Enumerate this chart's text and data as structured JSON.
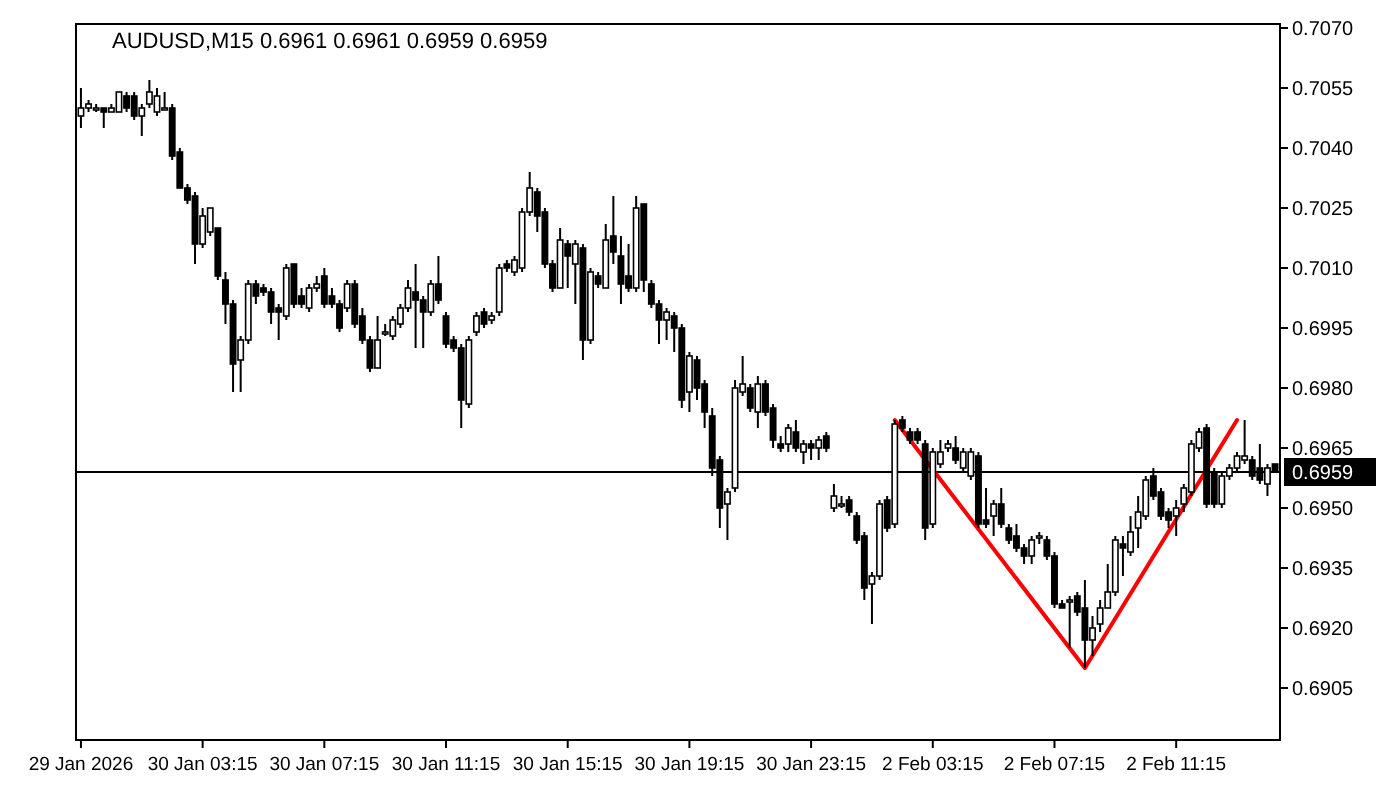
{
  "chart_data": {
    "type": "candlestick",
    "title": "AUDUSD,M15  0.6961 0.6961 0.6959 0.6959",
    "categories": [
      "29 Jan 2026",
      null,
      null,
      null,
      null,
      null,
      null,
      null,
      null,
      null,
      null,
      null,
      null,
      null,
      null,
      null,
      "30 Jan 03:15",
      null,
      null,
      null,
      null,
      null,
      null,
      null,
      null,
      null,
      null,
      null,
      null,
      null,
      null,
      null,
      "30 Jan 07:15",
      null,
      null,
      null,
      null,
      null,
      null,
      null,
      null,
      null,
      null,
      null,
      null,
      null,
      null,
      null,
      "30 Jan 11:15",
      null,
      null,
      null,
      null,
      null,
      null,
      null,
      null,
      null,
      null,
      null,
      null,
      null,
      null,
      null,
      "30 Jan 15:15",
      null,
      null,
      null,
      null,
      null,
      null,
      null,
      null,
      null,
      null,
      null,
      null,
      null,
      null,
      null,
      "30 Jan 19:15",
      null,
      null,
      null,
      null,
      null,
      null,
      null,
      null,
      null,
      null,
      null,
      null,
      null,
      null,
      null,
      "30 Jan 23:15",
      null,
      null,
      null,
      null,
      null,
      null,
      null,
      null,
      null,
      null,
      null,
      null,
      null,
      null,
      null,
      "2 Feb 03:15",
      null,
      null,
      null,
      null,
      null,
      null,
      null,
      null,
      null,
      null,
      null,
      null,
      null,
      null,
      null,
      "2 Feb 07:15",
      null,
      null,
      null,
      null,
      null,
      null,
      null,
      null,
      null,
      null,
      null,
      null,
      null,
      null,
      null,
      "2 Feb 11:15",
      null,
      null,
      null,
      null,
      null,
      null,
      null,
      null,
      null,
      null,
      null,
      null,
      null
    ],
    "ohlc": [
      [
        0.7048,
        0.7055,
        0.7045,
        0.705
      ],
      [
        0.705,
        0.7052,
        0.7049,
        0.7051
      ],
      [
        0.705,
        0.7051,
        0.7049,
        0.705
      ],
      [
        0.705,
        0.705,
        0.7045,
        0.7049
      ],
      [
        0.7049,
        0.7051,
        0.7049,
        0.705
      ],
      [
        0.7049,
        0.7054,
        0.7049,
        0.7054
      ],
      [
        0.7053,
        0.7054,
        0.7049,
        0.705
      ],
      [
        0.7053,
        0.7054,
        0.7047,
        0.7048
      ],
      [
        0.7048,
        0.7051,
        0.7043,
        0.705
      ],
      [
        0.7051,
        0.7057,
        0.705,
        0.7054
      ],
      [
        0.7049,
        0.7055,
        0.7048,
        0.7053
      ],
      [
        0.705,
        0.7054,
        0.705,
        0.705
      ],
      [
        0.705,
        0.7051,
        0.7037,
        0.7038
      ],
      [
        0.7039,
        0.704,
        0.703,
        0.703
      ],
      [
        0.703,
        0.7031,
        0.7026,
        0.7027
      ],
      [
        0.7028,
        0.7029,
        0.7011,
        0.7016
      ],
      [
        0.7016,
        0.7025,
        0.7015,
        0.7023
      ],
      [
        0.7019,
        0.7025,
        0.7018,
        0.7025
      ],
      [
        0.702,
        0.702,
        0.7007,
        0.7008
      ],
      [
        0.7007,
        0.7009,
        0.6996,
        0.7001
      ],
      [
        0.7001,
        0.7002,
        0.6979,
        0.6986
      ],
      [
        0.6987,
        0.6993,
        0.6979,
        0.6992
      ],
      [
        0.6992,
        0.7007,
        0.6991,
        0.7006
      ],
      [
        0.7006,
        0.7007,
        0.7001,
        0.7003
      ],
      [
        0.7005,
        0.7006,
        0.7003,
        0.7004
      ],
      [
        0.7004,
        0.7005,
        0.6996,
        0.6999
      ],
      [
        0.7,
        0.7001,
        0.6992,
        0.6999
      ],
      [
        0.6998,
        0.7011,
        0.6997,
        0.701
      ],
      [
        0.7011,
        0.7011,
        0.7,
        0.7001
      ],
      [
        0.7003,
        0.7005,
        0.7,
        0.7001
      ],
      [
        0.7,
        0.7006,
        0.6999,
        0.7005
      ],
      [
        0.7005,
        0.7008,
        0.7004,
        0.7006
      ],
      [
        0.7008,
        0.701,
        0.7,
        0.7001
      ],
      [
        0.7003,
        0.7005,
        0.7,
        0.7001
      ],
      [
        0.7001,
        0.7002,
        0.6994,
        0.6995
      ],
      [
        0.7,
        0.7007,
        0.6999,
        0.7006
      ],
      [
        0.7006,
        0.7007,
        0.6995,
        0.6996
      ],
      [
        0.6998,
        0.7,
        0.6991,
        0.6992
      ],
      [
        0.6992,
        0.6993,
        0.6984,
        0.6985
      ],
      [
        0.6985,
        0.6998,
        0.6985,
        0.6992
      ],
      [
        0.6994,
        0.6996,
        0.6993,
        0.6994
      ],
      [
        0.6993,
        0.6998,
        0.6992,
        0.6997
      ],
      [
        0.6996,
        0.7001,
        0.6995,
        0.7
      ],
      [
        0.7,
        0.7007,
        0.6999,
        0.7005
      ],
      [
        0.7004,
        0.7011,
        0.699,
        0.7002
      ],
      [
        0.7002,
        0.7003,
        0.699,
        0.6999
      ],
      [
        0.6999,
        0.7007,
        0.6998,
        0.7006
      ],
      [
        0.7006,
        0.7013,
        0.7001,
        0.7002
      ],
      [
        0.6998,
        0.6999,
        0.699,
        0.6991
      ],
      [
        0.6992,
        0.6993,
        0.6989,
        0.699
      ],
      [
        0.699,
        0.6991,
        0.697,
        0.6977
      ],
      [
        0.6976,
        0.6993,
        0.6975,
        0.6992
      ],
      [
        0.6994,
        0.6999,
        0.6993,
        0.6998
      ],
      [
        0.6999,
        0.7,
        0.6995,
        0.6996
      ],
      [
        0.6997,
        0.6999,
        0.6996,
        0.6998
      ],
      [
        0.6999,
        0.7011,
        0.6998,
        0.701
      ],
      [
        0.7011,
        0.7012,
        0.7009,
        0.701
      ],
      [
        0.7009,
        0.7013,
        0.7008,
        0.7012
      ],
      [
        0.701,
        0.7025,
        0.7009,
        0.7024
      ],
      [
        0.7024,
        0.7034,
        0.7023,
        0.703
      ],
      [
        0.7029,
        0.703,
        0.7019,
        0.7023
      ],
      [
        0.7024,
        0.7025,
        0.701,
        0.7011
      ],
      [
        0.7011,
        0.7012,
        0.7004,
        0.7005
      ],
      [
        0.7005,
        0.702,
        0.7005,
        0.7017
      ],
      [
        0.7016,
        0.7017,
        0.7005,
        0.7013
      ],
      [
        0.7011,
        0.7017,
        0.7001,
        0.7016
      ],
      [
        0.7015,
        0.7016,
        0.6987,
        0.6992
      ],
      [
        0.6992,
        0.701,
        0.6991,
        0.7009
      ],
      [
        0.7008,
        0.7009,
        0.7005,
        0.7006
      ],
      [
        0.7005,
        0.7021,
        0.7005,
        0.7017
      ],
      [
        0.7018,
        0.7028,
        0.7011,
        0.7014
      ],
      [
        0.7013,
        0.7018,
        0.7001,
        0.7006
      ],
      [
        0.7008,
        0.7016,
        0.7004,
        0.7005
      ],
      [
        0.7005,
        0.7028,
        0.7004,
        0.7025
      ],
      [
        0.7026,
        0.7026,
        0.7004,
        0.7007
      ],
      [
        0.7006,
        0.7007,
        0.7,
        0.7001
      ],
      [
        0.7001,
        0.7002,
        0.6991,
        0.6997
      ],
      [
        0.6997,
        0.7,
        0.6992,
        0.6999
      ],
      [
        0.6998,
        0.6999,
        0.6989,
        0.6995
      ],
      [
        0.6995,
        0.6996,
        0.6975,
        0.6977
      ],
      [
        0.6979,
        0.6989,
        0.6974,
        0.6988
      ],
      [
        0.6987,
        0.6988,
        0.6977,
        0.698
      ],
      [
        0.6981,
        0.6982,
        0.697,
        0.6974
      ],
      [
        0.6973,
        0.6975,
        0.6958,
        0.696
      ],
      [
        0.6962,
        0.6963,
        0.6945,
        0.695
      ],
      [
        0.6951,
        0.6955,
        0.6942,
        0.6954
      ],
      [
        0.6955,
        0.6982,
        0.6954,
        0.698
      ],
      [
        0.6979,
        0.6988,
        0.6978,
        0.6981
      ],
      [
        0.698,
        0.6981,
        0.6974,
        0.6975
      ],
      [
        0.6974,
        0.6983,
        0.697,
        0.6981
      ],
      [
        0.6981,
        0.6982,
        0.6973,
        0.6974
      ],
      [
        0.6975,
        0.6976,
        0.6965,
        0.6967
      ],
      [
        0.6966,
        0.6968,
        0.6964,
        0.6965
      ],
      [
        0.6966,
        0.6971,
        0.6964,
        0.697
      ],
      [
        0.6969,
        0.6972,
        0.6964,
        0.6965
      ],
      [
        0.6964,
        0.6967,
        0.6961,
        0.6966
      ],
      [
        0.6966,
        0.6967,
        0.6962,
        0.6965
      ],
      [
        0.6965,
        0.6968,
        0.6962,
        0.6967
      ],
      [
        0.6968,
        0.6969,
        0.6964,
        0.6965
      ],
      [
        0.695,
        0.6956,
        0.6949,
        0.6953
      ],
      [
        0.6951,
        0.6953,
        0.695,
        0.6951
      ],
      [
        0.6952,
        0.6953,
        0.6948,
        0.6949
      ],
      [
        0.6948,
        0.6949,
        0.6941,
        0.6942
      ],
      [
        0.6943,
        0.6944,
        0.6927,
        0.693
      ],
      [
        0.6931,
        0.6934,
        0.6921,
        0.6933
      ],
      [
        0.6933,
        0.6952,
        0.6932,
        0.6951
      ],
      [
        0.6952,
        0.6953,
        0.6944,
        0.6945
      ],
      [
        0.6946,
        0.6972,
        0.6945,
        0.6971
      ],
      [
        0.6972,
        0.6973,
        0.6969,
        0.697
      ],
      [
        0.6969,
        0.697,
        0.6966,
        0.6967
      ],
      [
        0.6969,
        0.697,
        0.6966,
        0.6967
      ],
      [
        0.6966,
        0.6967,
        0.6942,
        0.6945
      ],
      [
        0.6946,
        0.6965,
        0.6945,
        0.6964
      ],
      [
        0.6961,
        0.6967,
        0.696,
        0.6964
      ],
      [
        0.6965,
        0.6967,
        0.6964,
        0.6966
      ],
      [
        0.6965,
        0.6968,
        0.6961,
        0.6962
      ],
      [
        0.696,
        0.6965,
        0.6959,
        0.6964
      ],
      [
        0.6958,
        0.6965,
        0.6957,
        0.6964
      ],
      [
        0.6963,
        0.6964,
        0.6945,
        0.6946
      ],
      [
        0.6947,
        0.6955,
        0.6945,
        0.6946
      ],
      [
        0.6948,
        0.6952,
        0.6943,
        0.6951
      ],
      [
        0.6951,
        0.6955,
        0.6945,
        0.6946
      ],
      [
        0.6945,
        0.6946,
        0.6941,
        0.6942
      ],
      [
        0.6943,
        0.6946,
        0.6939,
        0.694
      ],
      [
        0.694,
        0.6941,
        0.6936,
        0.6938
      ],
      [
        0.6938,
        0.6943,
        0.6936,
        0.6942
      ],
      [
        0.6943,
        0.6944,
        0.6941,
        0.6943
      ],
      [
        0.6942,
        0.6943,
        0.6937,
        0.6938
      ],
      [
        0.6938,
        0.6939,
        0.6925,
        0.6926
      ],
      [
        0.6926,
        0.6927,
        0.6925,
        0.6925
      ],
      [
        0.6927,
        0.6928,
        0.6915,
        0.6927
      ],
      [
        0.6928,
        0.6929,
        0.6923,
        0.6924
      ],
      [
        0.6925,
        0.6932,
        0.691,
        0.6917
      ],
      [
        0.6917,
        0.6923,
        0.6913,
        0.692
      ],
      [
        0.6921,
        0.6927,
        0.6919,
        0.6925
      ],
      [
        0.6925,
        0.6936,
        0.6925,
        0.6929
      ],
      [
        0.6929,
        0.6943,
        0.6928,
        0.6942
      ],
      [
        0.6941,
        0.6943,
        0.6933,
        0.694
      ],
      [
        0.6939,
        0.6948,
        0.6938,
        0.6944
      ],
      [
        0.6945,
        0.6953,
        0.694,
        0.6949
      ],
      [
        0.6948,
        0.6958,
        0.6947,
        0.6957
      ],
      [
        0.6958,
        0.696,
        0.6952,
        0.6953
      ],
      [
        0.6954,
        0.6955,
        0.6947,
        0.6948
      ],
      [
        0.6949,
        0.695,
        0.6945,
        0.6947
      ],
      [
        0.6948,
        0.6952,
        0.6943,
        0.695
      ],
      [
        0.6951,
        0.6956,
        0.6949,
        0.6955
      ],
      [
        0.6954,
        0.6967,
        0.6953,
        0.6966
      ],
      [
        0.6965,
        0.697,
        0.6964,
        0.6969
      ],
      [
        0.697,
        0.6971,
        0.695,
        0.6951
      ],
      [
        0.6959,
        0.696,
        0.695,
        0.6951
      ],
      [
        0.6951,
        0.6959,
        0.695,
        0.6958
      ],
      [
        0.6958,
        0.6961,
        0.6957,
        0.696
      ],
      [
        0.696,
        0.6964,
        0.6959,
        0.6963
      ],
      [
        0.6962,
        0.6972,
        0.6961,
        0.6963
      ],
      [
        0.6962,
        0.6963,
        0.6957,
        0.6958
      ],
      [
        0.696,
        0.6966,
        0.6956,
        0.6957
      ],
      [
        0.6956,
        0.6961,
        0.6953,
        0.696
      ],
      [
        0.6961,
        0.6961,
        0.6959,
        0.6959
      ]
    ],
    "series": [
      {
        "type": "line",
        "color": "#ff0000",
        "values": [
          null,
          null,
          null,
          null,
          null,
          null,
          null,
          null,
          null,
          null,
          null,
          null,
          null,
          null,
          null,
          null,
          null,
          null,
          null,
          null,
          null,
          null,
          null,
          null,
          null,
          null,
          null,
          null,
          null,
          null,
          null,
          null,
          null,
          null,
          null,
          null,
          null,
          null,
          null,
          null,
          null,
          null,
          null,
          null,
          null,
          null,
          null,
          null,
          null,
          null,
          null,
          null,
          null,
          null,
          null,
          null,
          null,
          null,
          null,
          null,
          null,
          null,
          null,
          null,
          null,
          null,
          null,
          null,
          null,
          null,
          null,
          null,
          null,
          null,
          null,
          null,
          null,
          null,
          null,
          null,
          null,
          null,
          null,
          null,
          null,
          null,
          null,
          null,
          null,
          null,
          null,
          null,
          null,
          null,
          null,
          null,
          null,
          null,
          null,
          null,
          null,
          null,
          null,
          null,
          null,
          null,
          null,
          0.6972,
          null,
          null,
          null,
          null,
          null,
          null,
          null,
          null,
          null,
          null,
          null,
          null,
          null,
          null,
          null,
          null,
          null,
          null,
          null,
          null,
          null,
          null,
          null,
          null,
          0.691,
          null,
          null,
          null,
          null,
          null,
          null,
          null,
          null,
          null,
          null,
          null,
          null,
          null,
          null,
          null,
          null,
          null,
          null,
          null,
          0.6972,
          null,
          null,
          null,
          null,
          null
        ]
      }
    ],
    "ylim": [
      0.6892,
      0.7071
    ],
    "yticks": [
      {
        "value": 0.707,
        "label": "0.7070"
      },
      0.7055,
      {
        "value": 0.704,
        "label": "0.7040"
      },
      0.7025,
      {
        "value": 0.701,
        "label": "0.7010"
      },
      0.6995,
      {
        "value": 0.698,
        "label": "0.6980"
      },
      0.6965,
      {
        "value": 0.695,
        "label": "0.6950"
      },
      0.6935,
      {
        "value": 0.692,
        "label": "0.6920"
      },
      0.6905
    ],
    "ref_lines": [
      {
        "axis": "y",
        "value": 0.6959,
        "label": "0.6959",
        "color": "#000000"
      }
    ],
    "grid": false
  }
}
